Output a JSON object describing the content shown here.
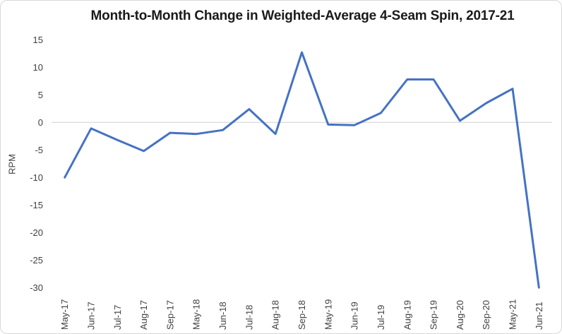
{
  "chart": {
    "title": "Month-to-Month Change in Weighted-Average 4-Seam Spin, 2017-21",
    "y_axis_title": "RPM"
  },
  "chart_data": {
    "type": "line",
    "title": "Month-to-Month Change in Weighted-Average 4-Seam Spin, 2017-21",
    "xlabel": "",
    "ylabel": "RPM",
    "categories": [
      "May-17",
      "Jun-17",
      "Jul-17",
      "Aug-17",
      "Sep-17",
      "May-18",
      "Jun-18",
      "Jul-18",
      "Aug-18",
      "Sep-18",
      "May-19",
      "Jun-19",
      "Jul-19",
      "Aug-19",
      "Sep-19",
      "Aug-20",
      "Sep-20",
      "May-21",
      "Jun-21"
    ],
    "values": [
      -10,
      -1.1,
      -3.2,
      -5.2,
      -1.9,
      -2.1,
      -1.4,
      2.4,
      -2.1,
      12.7,
      -0.4,
      -0.5,
      1.7,
      7.8,
      7.8,
      0.3,
      3.5,
      6.1,
      -30
    ],
    "ylim": [
      -30,
      15
    ],
    "yticks": [
      15,
      10,
      5,
      0,
      -5,
      -10,
      -15,
      -20,
      -25,
      -30
    ],
    "grid": "zero-line-only",
    "legend": "none",
    "x_tick_rotation_deg": -90,
    "line_color": "#4472C4",
    "zero_line_color": "#d6d6d6",
    "tick_label_color": "#404040",
    "frame_border_color": "#d9d9d9"
  }
}
